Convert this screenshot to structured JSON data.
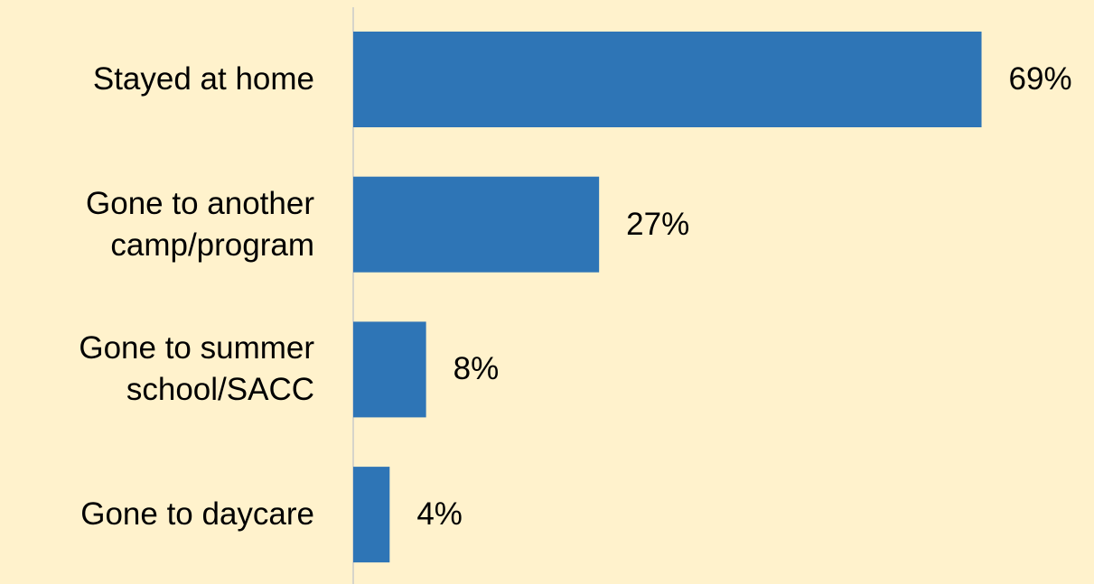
{
  "chart_data": {
    "type": "bar",
    "orientation": "horizontal",
    "categories": [
      "Stayed at home",
      "Gone to another\ncamp/program",
      "Gone to summer\nschool/SACC",
      "Gone to daycare"
    ],
    "values": [
      69,
      27,
      8,
      4
    ],
    "value_labels": [
      "69%",
      "27%",
      "8%",
      "4%"
    ],
    "color": "#2e75b6"
  }
}
